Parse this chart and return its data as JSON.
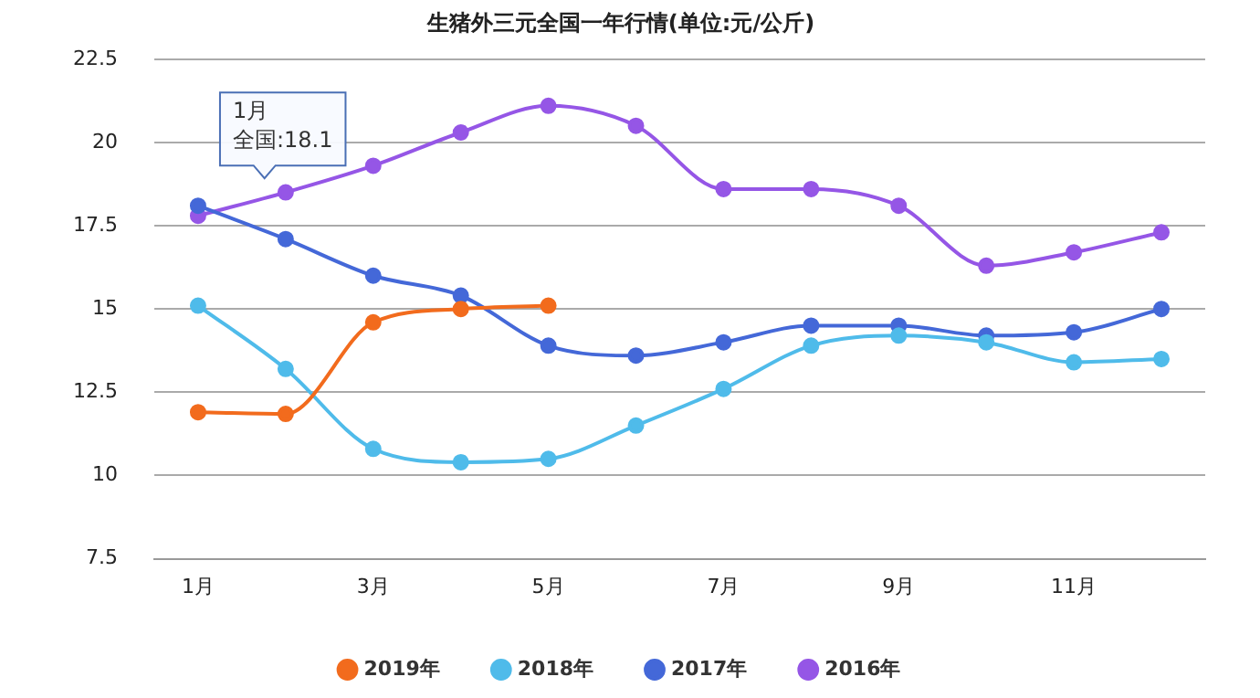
{
  "chart_data": {
    "type": "line",
    "title": "生猪外三元全国一年行情(单位:元/公斤)",
    "categories": [
      "1月",
      null,
      "3月",
      null,
      "5月",
      null,
      "7月",
      null,
      "9月",
      null,
      "11月",
      null
    ],
    "series": [
      {
        "name": "2019年",
        "color": "#f26b1d",
        "values": [
          11.9,
          11.85,
          14.6,
          15.0,
          15.1,
          null,
          null,
          null,
          null,
          null,
          null,
          null
        ]
      },
      {
        "name": "2018年",
        "color": "#4fbbea",
        "values": [
          15.1,
          13.2,
          10.8,
          10.4,
          10.5,
          11.5,
          12.6,
          13.9,
          14.2,
          14.0,
          13.4,
          13.5
        ]
      },
      {
        "name": "2017年",
        "color": "#4468d8",
        "values": [
          18.1,
          17.1,
          16.0,
          15.4,
          13.9,
          13.6,
          14.0,
          14.5,
          14.5,
          14.2,
          14.3,
          15.0
        ]
      },
      {
        "name": "2016年",
        "color": "#9556e6",
        "values": [
          17.8,
          18.5,
          19.3,
          20.3,
          21.1,
          20.5,
          18.6,
          18.6,
          18.1,
          16.3,
          16.7,
          17.3
        ]
      }
    ],
    "ylim": [
      7.5,
      22.5
    ],
    "yticks": [
      7.5,
      10,
      12.5,
      15,
      17.5,
      20,
      22.5
    ],
    "grid": "y",
    "legend": "bottom",
    "marker": "circle",
    "line_style": "solid",
    "annotations": [
      "1月",
      {
        "text": "全国:18.1",
        "x": "1月",
        "y": 18.1
      }
    ]
  }
}
